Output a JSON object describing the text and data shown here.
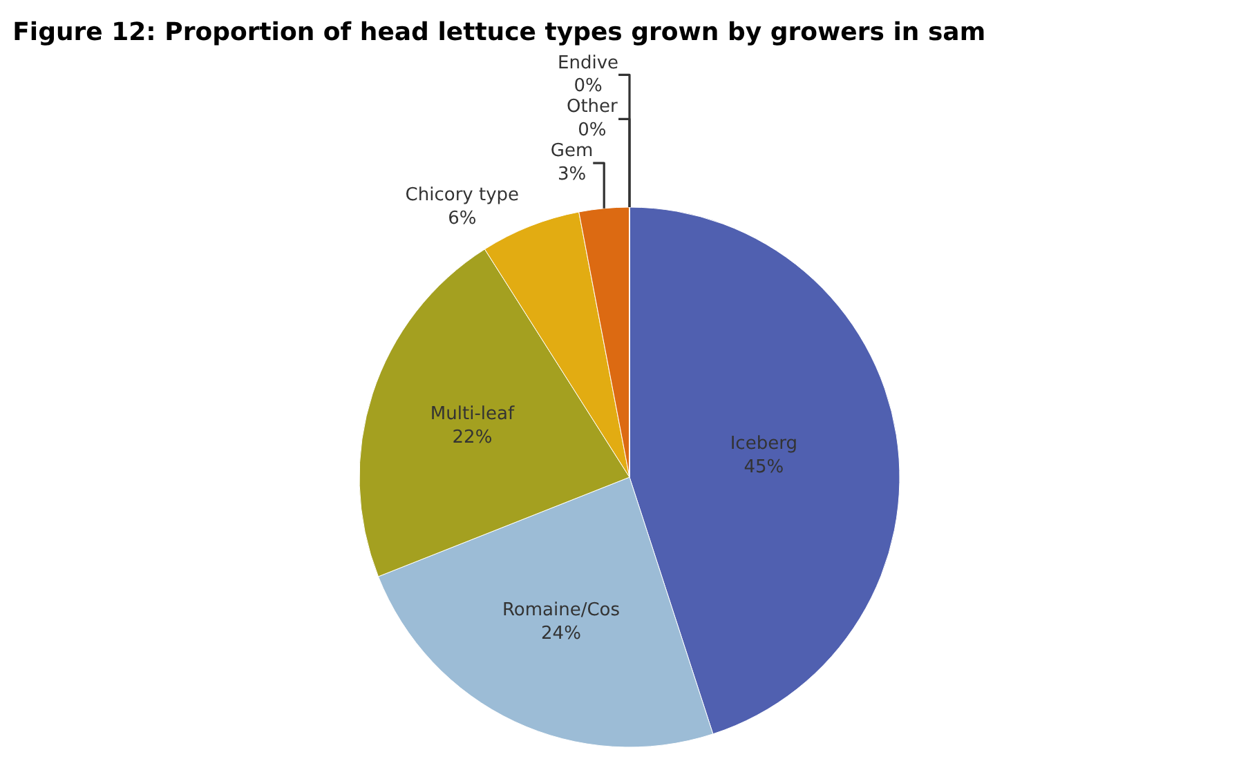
{
  "chart_data": {
    "type": "pie",
    "title": "Figure 12: Proportion of head lettuce types grown by growers in sam",
    "categories": [
      "Iceberg",
      "Romaine/Cos",
      "Multi-leaf",
      "Chicory type",
      "Gem",
      "Other",
      "Endive"
    ],
    "values": [
      45,
      24,
      22,
      6,
      3,
      0,
      0
    ],
    "colors": [
      "#5060b0",
      "#9cbcd6",
      "#a4a020",
      "#e2ac12",
      "#dc6a12",
      "#8c8a78",
      "#aab8c6"
    ],
    "value_labels": [
      "45%",
      "24%",
      "22%",
      "6%",
      "3%",
      "0%",
      "0%"
    ],
    "legend": false
  }
}
